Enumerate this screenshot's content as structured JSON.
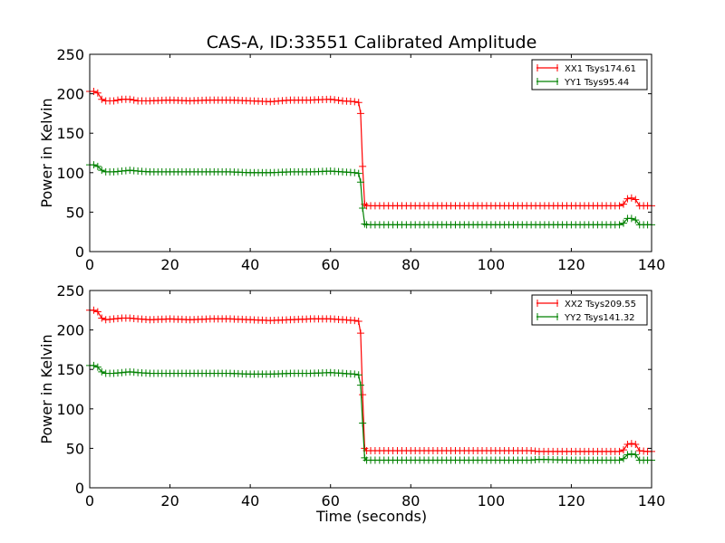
{
  "figure": {
    "title": "CAS-A, ID:33551 Calibrated Amplitude",
    "xlabel": "Time (seconds)"
  },
  "chart_data": [
    {
      "type": "line",
      "title": "CAS-A, ID:33551 Calibrated Amplitude",
      "xlabel": "",
      "ylabel": "Power in Kelvin",
      "xlim": [
        0,
        140
      ],
      "ylim": [
        0,
        250
      ],
      "xticks": [
        0,
        20,
        40,
        60,
        80,
        100,
        120,
        140
      ],
      "yticks": [
        0,
        50,
        100,
        150,
        200,
        250
      ],
      "marker": "+",
      "grid": false,
      "legend_position": "top-right",
      "series": [
        {
          "name": "XX1 Tsys174.61",
          "color": "#ff0000",
          "x": [
            0,
            1,
            2,
            3,
            4,
            6,
            8,
            10,
            12,
            15,
            20,
            25,
            30,
            35,
            40,
            45,
            50,
            55,
            60,
            63,
            66,
            67,
            67.5,
            68,
            68.5,
            69,
            70,
            80,
            100,
            120,
            132,
            133,
            134,
            135,
            136,
            137,
            139,
            140
          ],
          "y": [
            203,
            203,
            201,
            193,
            191,
            191,
            193,
            193,
            191,
            191,
            192,
            191,
            192,
            192,
            191,
            190,
            192,
            192,
            193,
            191,
            190,
            189,
            175,
            108,
            60,
            58,
            58,
            58,
            58,
            58,
            58,
            60,
            67,
            68,
            66,
            58,
            58,
            58
          ]
        },
        {
          "name": "YY1 Tsys95.44",
          "color": "#008000",
          "x": [
            0,
            1,
            2,
            3,
            4,
            6,
            8,
            10,
            12,
            15,
            20,
            25,
            30,
            35,
            40,
            45,
            50,
            55,
            60,
            63,
            66,
            67,
            67.5,
            68,
            68.5,
            69,
            70,
            80,
            100,
            120,
            132,
            133,
            134,
            135,
            136,
            137,
            139,
            140
          ],
          "y": [
            110,
            110,
            108,
            103,
            101,
            101,
            102,
            103,
            102,
            101,
            101,
            101,
            101,
            101,
            100,
            100,
            101,
            101,
            102,
            101,
            100,
            99,
            88,
            55,
            35,
            34,
            34,
            34,
            34,
            34,
            34,
            36,
            42,
            42,
            40,
            34,
            34,
            34
          ]
        }
      ]
    },
    {
      "type": "line",
      "title": "",
      "xlabel": "Time (seconds)",
      "ylabel": "Power in Kelvin",
      "xlim": [
        0,
        140
      ],
      "ylim": [
        0,
        250
      ],
      "xticks": [
        0,
        20,
        40,
        60,
        80,
        100,
        120,
        140
      ],
      "yticks": [
        0,
        50,
        100,
        150,
        200,
        250
      ],
      "marker": "+",
      "grid": false,
      "legend_position": "top-right",
      "series": [
        {
          "name": "XX2 Tsys209.55",
          "color": "#ff0000",
          "x": [
            0,
            1,
            2,
            3,
            4,
            6,
            8,
            10,
            12,
            15,
            20,
            25,
            30,
            35,
            40,
            45,
            50,
            55,
            60,
            63,
            66,
            67,
            67.5,
            68,
            68.5,
            69,
            70,
            80,
            100,
            110,
            112,
            120,
            132,
            133,
            134,
            135,
            136,
            137,
            139,
            140
          ],
          "y": [
            225,
            225,
            223,
            215,
            213,
            214,
            215,
            215,
            214,
            213,
            214,
            213,
            214,
            214,
            213,
            212,
            213,
            214,
            214,
            213,
            212,
            211,
            196,
            118,
            50,
            47,
            47,
            47,
            47,
            47,
            46,
            46,
            46,
            48,
            55,
            56,
            55,
            47,
            46,
            46
          ]
        },
        {
          "name": "YY2 Tsys141.32",
          "color": "#008000",
          "x": [
            0,
            1,
            2,
            3,
            4,
            6,
            8,
            10,
            12,
            15,
            20,
            25,
            30,
            35,
            40,
            45,
            50,
            55,
            60,
            63,
            66,
            67,
            67.5,
            68,
            68.5,
            69,
            70,
            80,
            100,
            110,
            112,
            120,
            132,
            133,
            134,
            135,
            136,
            137,
            139,
            140
          ],
          "y": [
            155,
            155,
            153,
            147,
            145,
            145,
            146,
            147,
            146,
            145,
            145,
            145,
            145,
            145,
            144,
            144,
            145,
            145,
            146,
            145,
            144,
            143,
            130,
            82,
            38,
            35,
            35,
            35,
            35,
            35,
            36,
            35,
            35,
            37,
            42,
            43,
            42,
            35,
            35,
            35
          ]
        }
      ]
    }
  ]
}
